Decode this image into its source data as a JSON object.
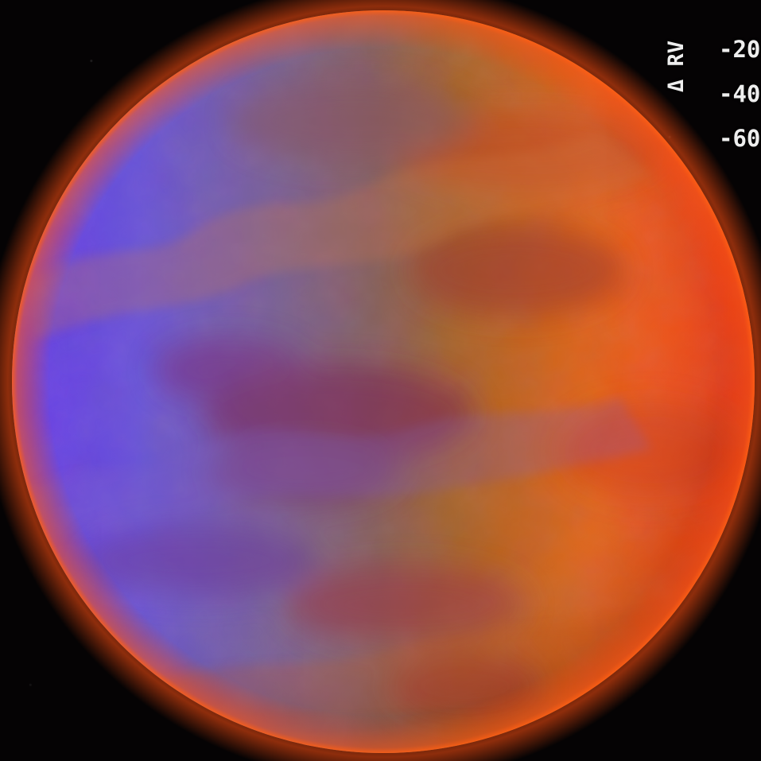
{
  "overlay": {
    "label": "Δ RV",
    "values": [
      "-20",
      "-40",
      "-60"
    ]
  },
  "colors": {
    "blue_side": "#6b46e8",
    "violet_mid": "#8a5a9b",
    "orange_side": "#f06112",
    "rim_glow": "#ff4a12",
    "background": "#050304"
  },
  "scene": {
    "subject": "planet",
    "texture": "cloud mottling"
  }
}
